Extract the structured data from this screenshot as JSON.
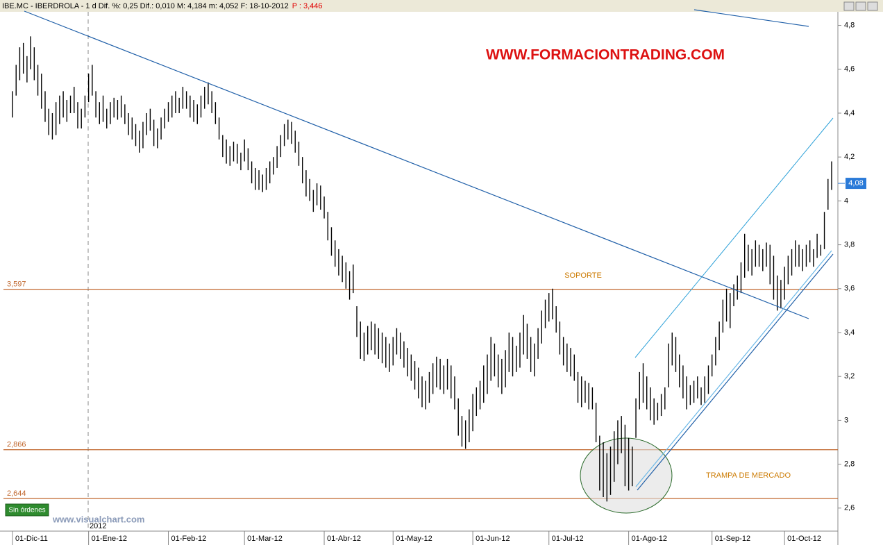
{
  "chart_data": {
    "type": "ohlc",
    "header": "IBE.MC - IBERDROLA - 1 d Dif. %: 0,25 Dif.: 0,010 M: 4,184 m: 4,052 F: 18-10-2012",
    "header_price": "P : 3,446",
    "watermark": "WWW.FORMACIONTRADING.COM",
    "site": "www.visualchart.com",
    "status": "Sin órdenes",
    "year_label": "2012",
    "annotations": [
      "SOPORTE",
      "TRAMPA DE MERCADO"
    ],
    "color": "#000000",
    "level_color": "#c0662c",
    "levels": [
      {
        "value": 3.597,
        "label": "3,597"
      },
      {
        "value": 2.866,
        "label": "2,866"
      },
      {
        "value": 2.644,
        "label": "2,644"
      }
    ],
    "last": {
      "value": 4.08,
      "label": "4,08"
    },
    "ylim": [
      2.495,
      4.865
    ],
    "yticks": [
      {
        "value": 2.6,
        "label": "2,6"
      },
      {
        "value": 2.8,
        "label": "2,8"
      },
      3,
      {
        "value": 3.2,
        "label": "3,2"
      },
      {
        "value": 3.4,
        "label": "3,4"
      },
      {
        "value": 3.6,
        "label": "3,6"
      },
      {
        "value": 3.8,
        "label": "3,8"
      },
      4,
      {
        "value": 4.2,
        "label": "4,2"
      },
      {
        "value": 4.4,
        "label": "4,4"
      },
      {
        "value": 4.6,
        "label": "4,6"
      },
      {
        "value": 4.8,
        "label": "4,8"
      }
    ],
    "xlim": [
      0,
      226
    ],
    "xticks": [
      {
        "value": 0,
        "label": "01-Dic-11"
      },
      {
        "value": 21,
        "label": "01-Ene-12"
      },
      {
        "value": 43,
        "label": "01-Feb-12"
      },
      {
        "value": 64,
        "label": "01-Mar-12"
      },
      {
        "value": 86,
        "label": "01-Abr-12"
      },
      {
        "value": 105,
        "label": "01-May-12"
      },
      {
        "value": 127,
        "label": "01-Jun-12"
      },
      {
        "value": 148,
        "label": "01-Jul-12"
      },
      {
        "value": 170,
        "label": "01-Ago-12"
      },
      {
        "value": 193,
        "label": "01-Sep-12"
      },
      {
        "value": 213,
        "label": "01-Oct-12"
      }
    ],
    "high": [
      4.5,
      4.62,
      4.7,
      4.72,
      4.66,
      4.75,
      4.7,
      4.62,
      4.58,
      4.5,
      4.42,
      4.4,
      4.45,
      4.48,
      4.5,
      4.46,
      4.48,
      4.52,
      4.45,
      4.42,
      4.48,
      4.58,
      4.62,
      4.5,
      4.45,
      4.48,
      4.42,
      4.45,
      4.47,
      4.46,
      4.48,
      4.44,
      4.4,
      4.38,
      4.35,
      4.32,
      4.36,
      4.4,
      4.42,
      4.37,
      4.33,
      4.38,
      4.42,
      4.45,
      4.48,
      4.5,
      4.47,
      4.52,
      4.5,
      4.48,
      4.46,
      4.44,
      4.48,
      4.52,
      4.54,
      4.5,
      4.45,
      4.38,
      4.3,
      4.28,
      4.25,
      4.27,
      4.26,
      4.22,
      4.28,
      4.24,
      4.18,
      4.15,
      4.14,
      4.12,
      4.15,
      4.18,
      4.2,
      4.25,
      4.3,
      4.35,
      4.37,
      4.36,
      4.32,
      4.27,
      4.2,
      4.14,
      4.1,
      4.05,
      4.08,
      4.07,
      4.02,
      3.95,
      3.88,
      3.82,
      3.78,
      3.75,
      3.72,
      3.68,
      3.71,
      3.52,
      3.45,
      3.4,
      3.43,
      3.45,
      3.44,
      3.42,
      3.4,
      3.38,
      3.35,
      3.38,
      3.42,
      3.4,
      3.36,
      3.33,
      3.3,
      3.27,
      3.24,
      3.2,
      3.18,
      3.22,
      3.26,
      3.29,
      3.28,
      3.25,
      3.28,
      3.25,
      3.2,
      3.1,
      3.02,
      3.0,
      3.05,
      3.12,
      3.15,
      3.18,
      3.25,
      3.3,
      3.38,
      3.35,
      3.3,
      3.28,
      3.32,
      3.4,
      3.38,
      3.34,
      3.4,
      3.48,
      3.44,
      3.38,
      3.35,
      3.42,
      3.5,
      3.55,
      3.58,
      3.6,
      3.52,
      3.45,
      3.38,
      3.35,
      3.33,
      3.3,
      3.22,
      3.2,
      3.18,
      3.17,
      3.15,
      3.08,
      2.93,
      2.9,
      2.85,
      2.88,
      2.95,
      3.0,
      3.02,
      2.98,
      2.92,
      2.88,
      3.1,
      3.22,
      3.26,
      3.2,
      3.15,
      3.1,
      3.08,
      3.12,
      3.15,
      3.35,
      3.4,
      3.38,
      3.3,
      3.25,
      3.2,
      3.16,
      3.18,
      3.2,
      3.15,
      3.2,
      3.25,
      3.3,
      3.38,
      3.45,
      3.55,
      3.6,
      3.58,
      3.62,
      3.66,
      3.72,
      3.85,
      3.8,
      3.78,
      3.82,
      3.8,
      3.78,
      3.81,
      3.8,
      3.75,
      3.66,
      3.64,
      3.7,
      3.75,
      3.78,
      3.82,
      3.8,
      3.78,
      3.8,
      3.82,
      3.78,
      3.85,
      3.8,
      3.95,
      4.1,
      4.18
    ],
    "low": [
      4.38,
      4.48,
      4.55,
      4.58,
      4.54,
      4.6,
      4.55,
      4.48,
      4.42,
      4.36,
      4.3,
      4.28,
      4.3,
      4.35,
      4.38,
      4.36,
      4.4,
      4.4,
      4.33,
      4.33,
      4.38,
      4.45,
      4.48,
      4.38,
      4.35,
      4.36,
      4.33,
      4.35,
      4.38,
      4.37,
      4.38,
      4.35,
      4.3,
      4.28,
      4.25,
      4.22,
      4.24,
      4.3,
      4.32,
      4.25,
      4.24,
      4.28,
      4.33,
      4.36,
      4.38,
      4.4,
      4.4,
      4.42,
      4.42,
      4.38,
      4.36,
      4.35,
      4.38,
      4.42,
      4.44,
      4.4,
      4.35,
      4.28,
      4.2,
      4.17,
      4.16,
      4.18,
      4.17,
      4.14,
      4.18,
      4.14,
      4.08,
      4.05,
      4.05,
      4.04,
      4.05,
      4.08,
      4.12,
      4.15,
      4.2,
      4.25,
      4.28,
      4.26,
      4.22,
      4.16,
      4.08,
      4.02,
      4.0,
      3.95,
      3.98,
      3.96,
      3.92,
      3.82,
      3.75,
      3.7,
      3.66,
      3.63,
      3.6,
      3.55,
      3.58,
      3.38,
      3.28,
      3.27,
      3.3,
      3.32,
      3.3,
      3.28,
      3.26,
      3.24,
      3.22,
      3.25,
      3.3,
      3.28,
      3.24,
      3.2,
      3.18,
      3.14,
      3.1,
      3.06,
      3.05,
      3.08,
      3.12,
      3.15,
      3.14,
      3.12,
      3.14,
      3.1,
      3.05,
      2.93,
      2.88,
      2.87,
      2.9,
      2.95,
      3.02,
      3.05,
      3.08,
      3.12,
      3.18,
      3.2,
      3.15,
      3.12,
      3.15,
      3.22,
      3.2,
      3.22,
      3.24,
      3.3,
      3.28,
      3.22,
      3.2,
      3.28,
      3.35,
      3.42,
      3.45,
      3.46,
      3.4,
      3.3,
      3.25,
      3.22,
      3.2,
      3.18,
      3.08,
      3.06,
      3.08,
      3.05,
      3.05,
      2.9,
      2.68,
      2.65,
      2.63,
      2.66,
      2.72,
      2.8,
      2.85,
      2.7,
      2.68,
      2.7,
      2.92,
      3.05,
      3.08,
      3.05,
      3.0,
      2.98,
      3.0,
      3.02,
      3.05,
      3.15,
      3.25,
      3.22,
      3.15,
      3.1,
      3.05,
      3.07,
      3.08,
      3.1,
      3.07,
      3.08,
      3.12,
      3.2,
      3.25,
      3.32,
      3.4,
      3.45,
      3.42,
      3.52,
      3.55,
      3.58,
      3.65,
      3.68,
      3.66,
      3.7,
      3.7,
      3.68,
      3.7,
      3.62,
      3.55,
      3.5,
      3.51,
      3.55,
      3.62,
      3.66,
      3.7,
      3.7,
      3.68,
      3.7,
      3.72,
      3.7,
      3.74,
      3.75,
      3.78,
      3.96,
      4.05
    ]
  }
}
